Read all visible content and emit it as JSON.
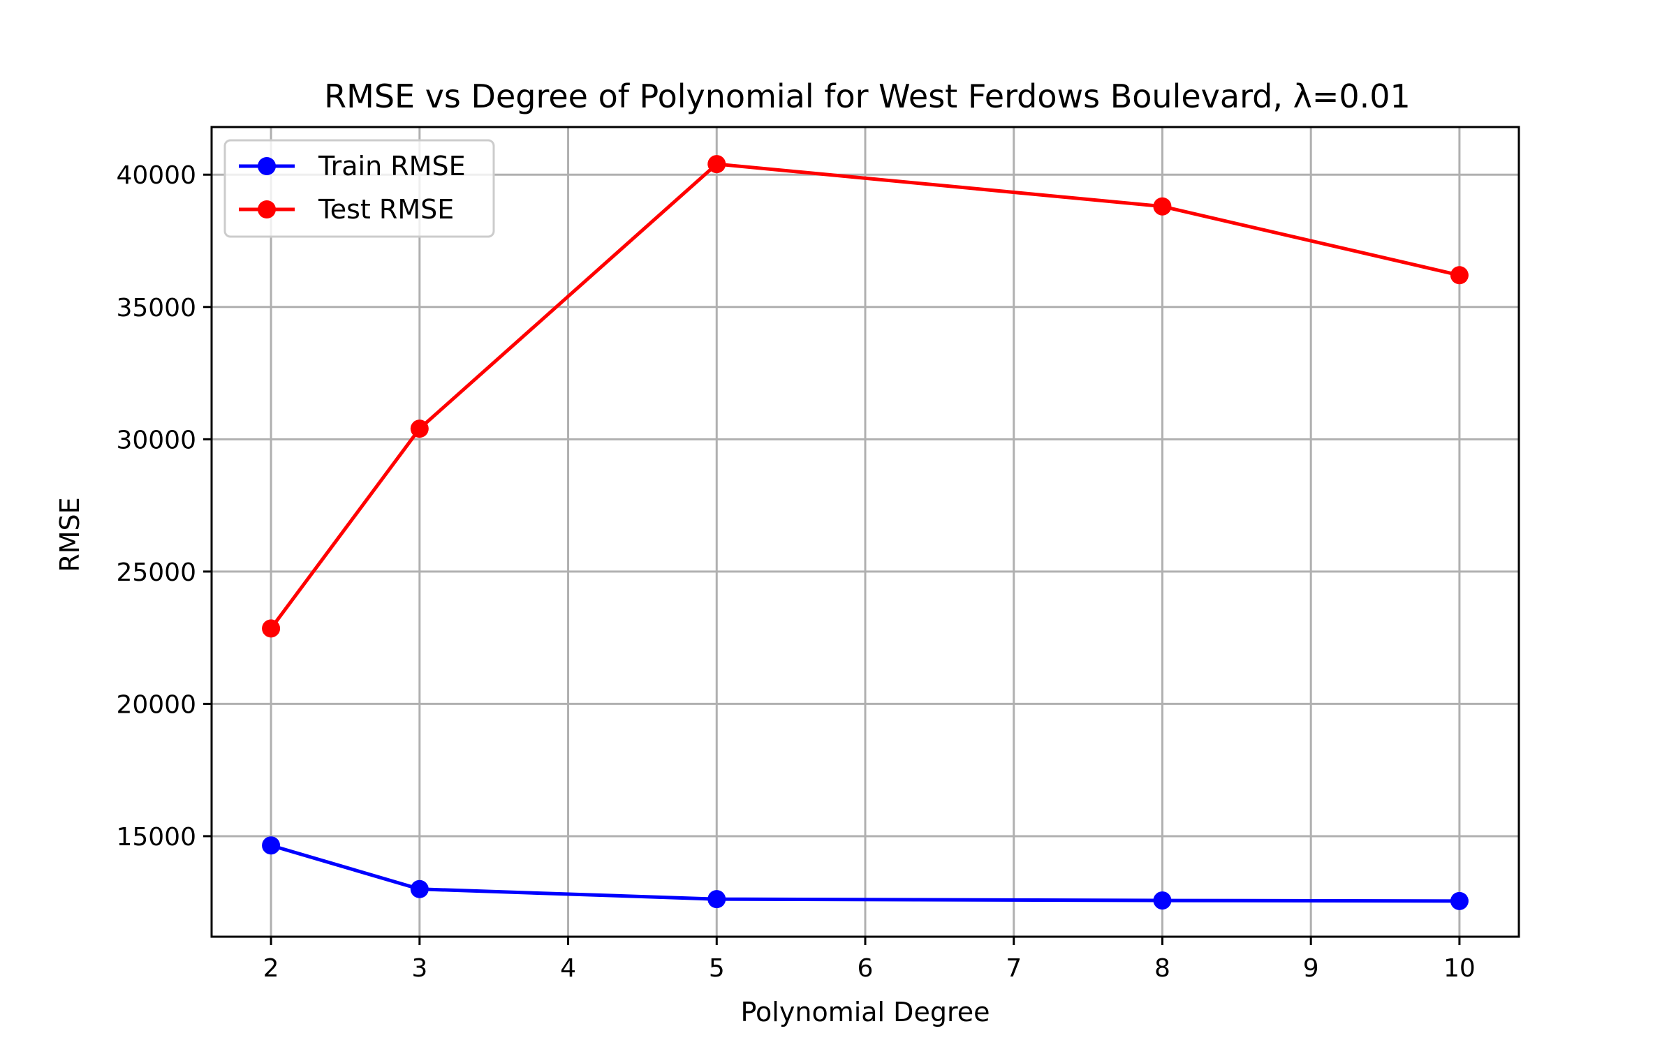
{
  "chart_data": {
    "type": "line",
    "title": "RMSE vs Degree of Polynomial for West Ferdows Boulevard, λ=0.01",
    "xlabel": "Polynomial Degree",
    "ylabel": "RMSE",
    "x": [
      2,
      3,
      5,
      8,
      10
    ],
    "xticks": [
      2,
      3,
      4,
      5,
      6,
      7,
      8,
      9,
      10
    ],
    "yticks": [
      15000,
      20000,
      25000,
      30000,
      35000,
      40000
    ],
    "xlim": [
      1.6,
      10.4
    ],
    "ylim": [
      11200,
      41800
    ],
    "grid": true,
    "legend_position": "top-left",
    "series": [
      {
        "name": "Train RMSE",
        "color": "#0000ff",
        "marker": "circle",
        "values": [
          14650,
          13000,
          12620,
          12570,
          12550
        ]
      },
      {
        "name": "Test RMSE",
        "color": "#ff0000",
        "marker": "circle",
        "values": [
          22850,
          30400,
          40400,
          38800,
          36200
        ]
      }
    ]
  }
}
